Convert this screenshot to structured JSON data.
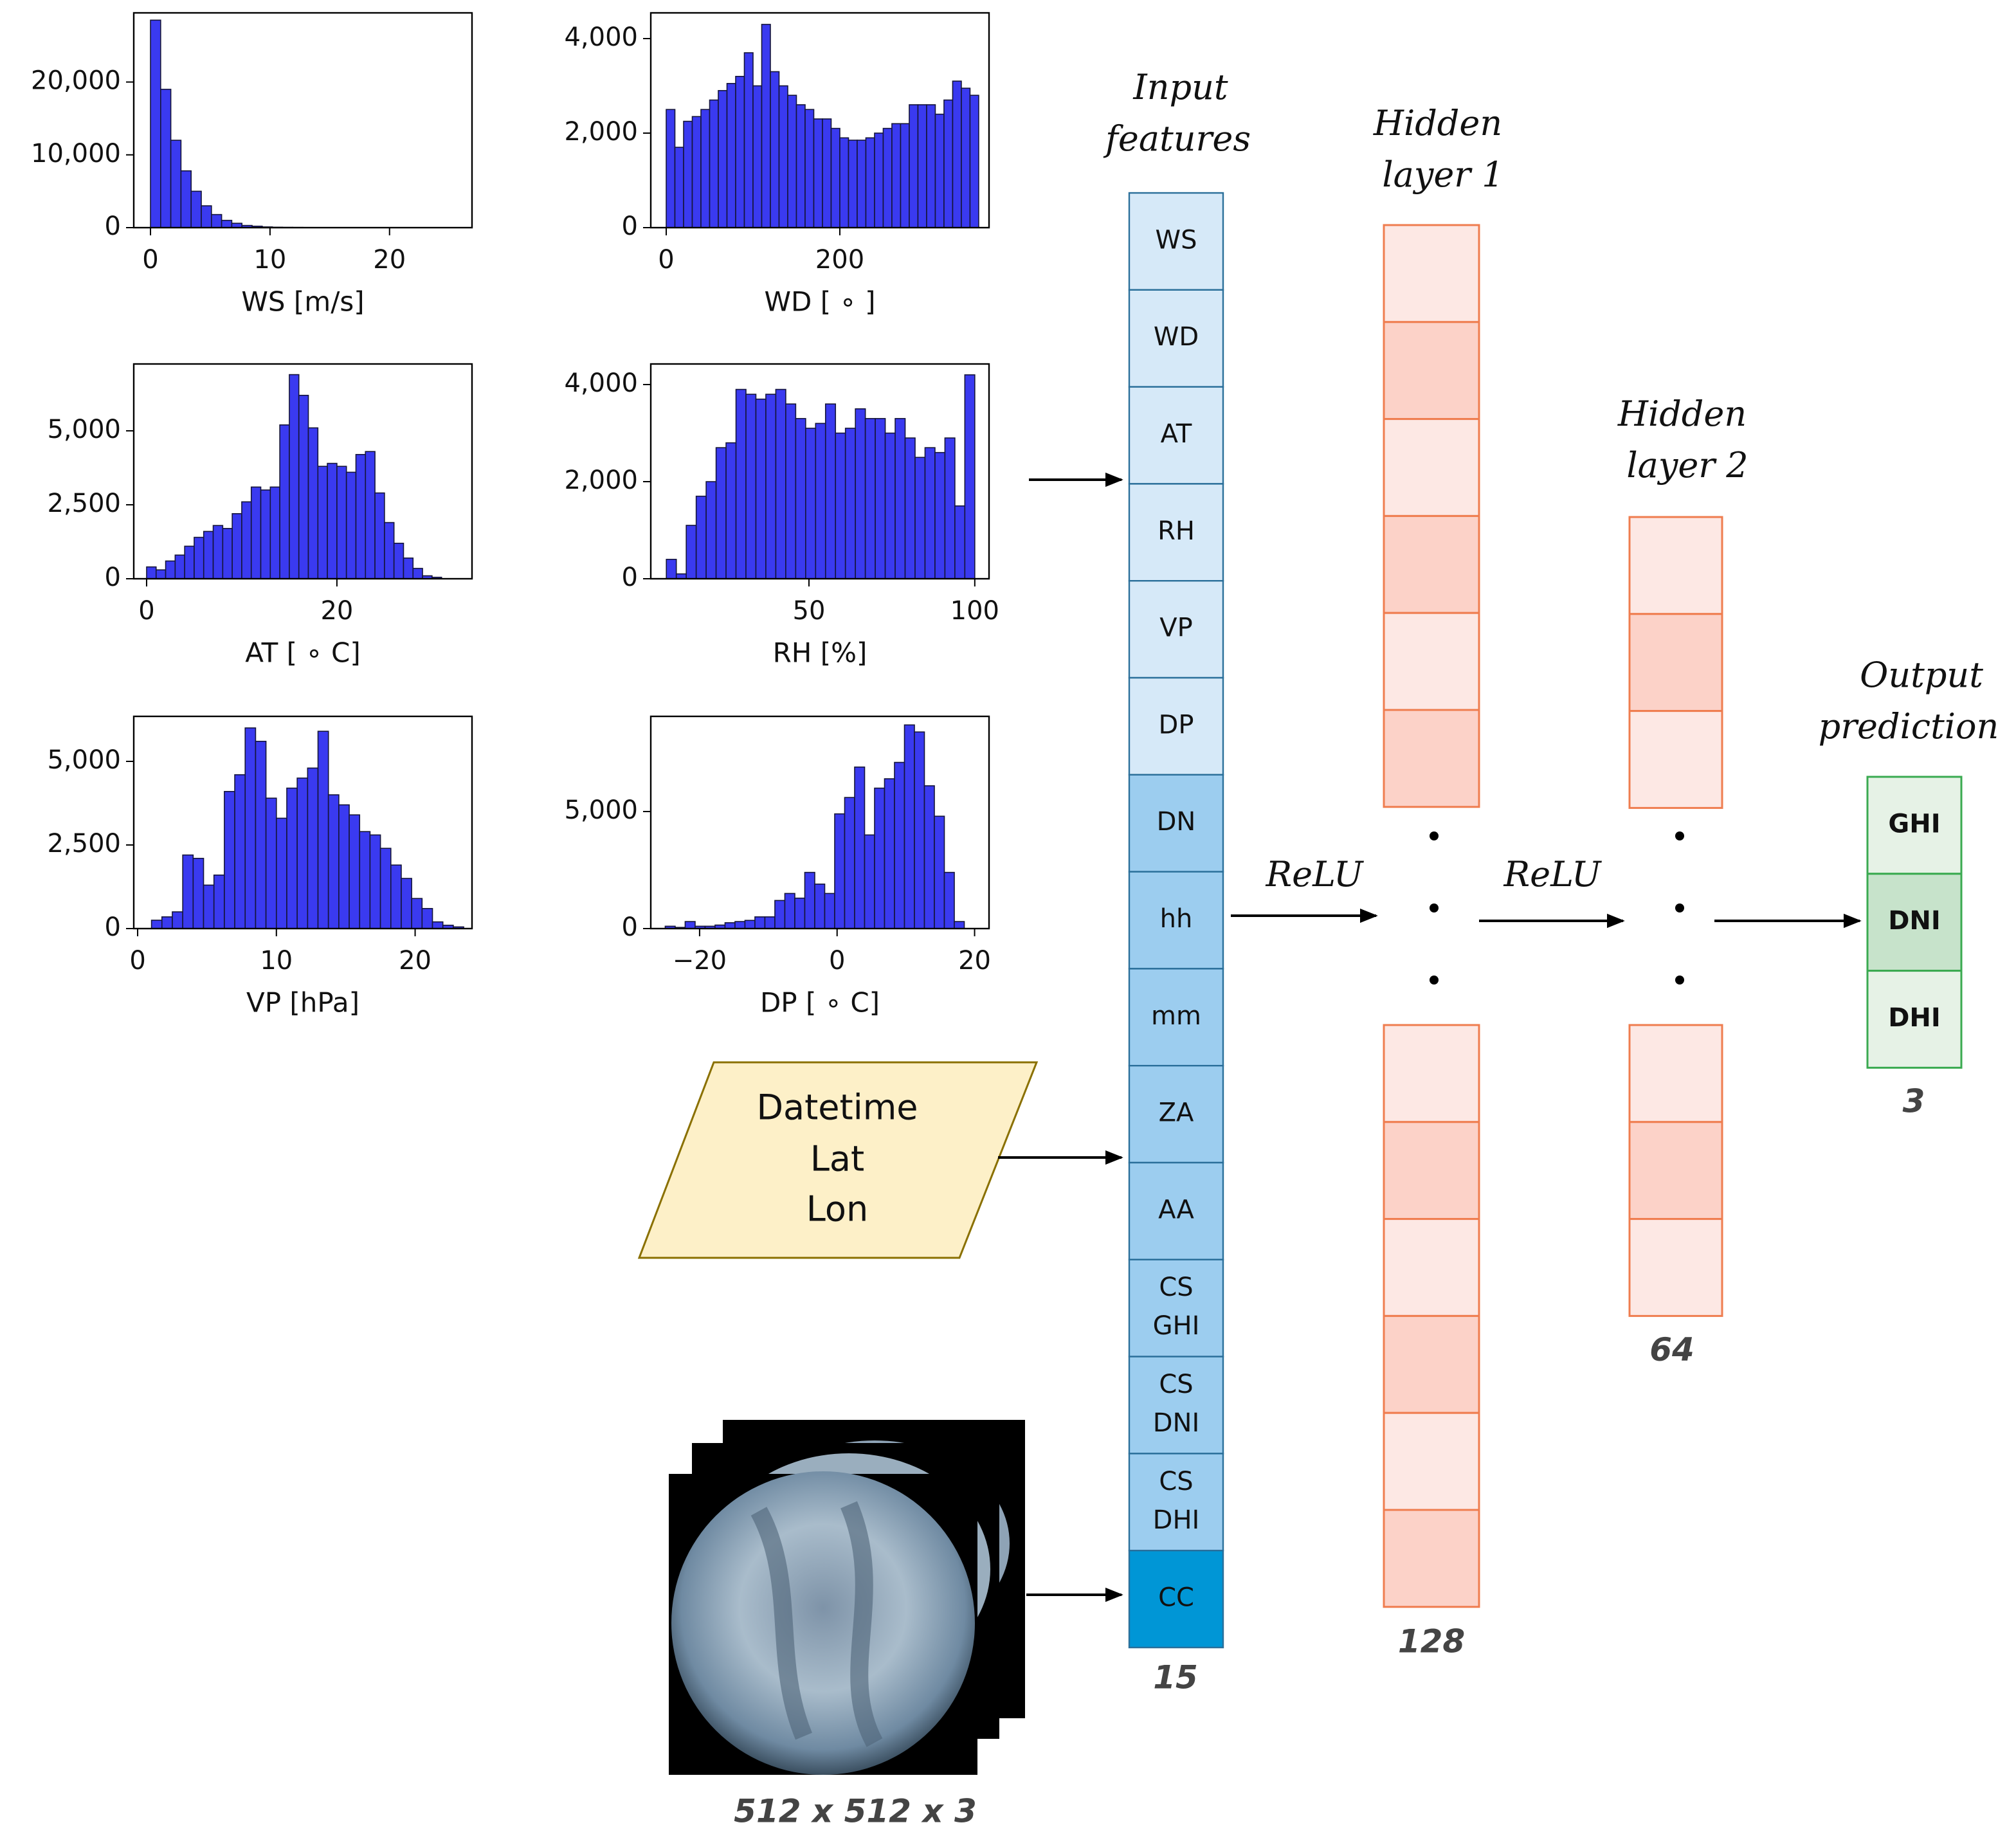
{
  "chart_data": [
    {
      "type": "histogram",
      "xlabel": "WS [m/s]",
      "color": "#3a3af0",
      "bins": [
        0,
        0.85,
        1.7,
        2.55,
        3.4,
        4.25,
        5.1,
        5.95,
        6.8,
        7.65,
        8.5,
        9.35,
        10.2,
        11.05,
        11.9,
        12.75,
        13.6,
        14.45,
        15.3,
        16.15,
        17,
        17.85,
        18.7,
        19.55,
        20.4,
        21.25,
        22.1,
        22.95,
        23.8,
        24.65,
        25.5
      ],
      "values": [
        28500,
        19000,
        12000,
        7800,
        5000,
        3000,
        1800,
        1000,
        600,
        300,
        200,
        100,
        60,
        40,
        30,
        20,
        15,
        10,
        10,
        5,
        5,
        5,
        5,
        3,
        3,
        2,
        2,
        1,
        1,
        1
      ],
      "xlim": [
        -1.4,
        26.9
      ],
      "ylim": [
        0,
        29500
      ],
      "xticks": [
        0,
        10,
        20
      ],
      "yticks": [
        0,
        {
          "value": 10000,
          "label": "10,000"
        },
        {
          "value": 20000,
          "label": "20,000"
        }
      ]
    },
    {
      "type": "histogram",
      "xlabel": "WD [ ∘ ]",
      "color": "#3a3af0",
      "bins": [
        0,
        10,
        20,
        30,
        40,
        50,
        60,
        70,
        80,
        90,
        100,
        110,
        120,
        130,
        140,
        150,
        160,
        170,
        180,
        190,
        200,
        210,
        220,
        230,
        240,
        250,
        260,
        270,
        280,
        290,
        300,
        310,
        320,
        330,
        340,
        350,
        360
      ],
      "values": [
        2500,
        1700,
        2250,
        2350,
        2500,
        2700,
        2900,
        3050,
        3200,
        3700,
        3000,
        4300,
        3300,
        3000,
        2800,
        2600,
        2500,
        2300,
        2300,
        2100,
        1900,
        1850,
        1850,
        1900,
        2000,
        2100,
        2200,
        2200,
        2600,
        2600,
        2600,
        2400,
        2700,
        3100,
        2950,
        2800
      ],
      "xlim": [
        -17.8,
        371.9
      ],
      "ylim": [
        0,
        4544
      ],
      "xticks": [
        0,
        200
      ],
      "yticks": [
        0,
        {
          "value": 2000,
          "label": "2,000"
        },
        {
          "value": 4000,
          "label": "4,000"
        }
      ]
    },
    {
      "type": "histogram",
      "xlabel": "AT [ ∘ C]",
      "color": "#3a3af0",
      "bins": [
        0,
        1,
        2,
        3,
        4,
        5,
        6,
        7,
        8,
        9,
        10,
        11,
        12,
        13,
        14,
        15,
        16,
        17,
        18,
        19,
        20,
        21,
        22,
        23,
        24,
        25,
        26,
        27,
        28,
        29,
        30,
        31
      ],
      "values": [
        400,
        300,
        600,
        800,
        1100,
        1400,
        1600,
        1800,
        1700,
        2200,
        2600,
        3100,
        3000,
        3100,
        5200,
        6900,
        6200,
        5100,
        3800,
        3900,
        3800,
        3600,
        4200,
        4300,
        2900,
        1900,
        1200,
        700,
        350,
        100,
        50
      ],
      "xlim": [
        -1.35,
        34.2
      ],
      "ylim": [
        0,
        7260
      ],
      "xticks": [
        0,
        20
      ],
      "yticks": [
        0,
        {
          "value": 2500,
          "label": "2,500"
        },
        {
          "value": 5000,
          "label": "5,000"
        }
      ]
    },
    {
      "type": "histogram",
      "xlabel": "RH [%]",
      "color": "#3a3af0",
      "bins": [
        7,
        10,
        13,
        16,
        19,
        22,
        25,
        28,
        31,
        34,
        37,
        40,
        43,
        46,
        49,
        52,
        55,
        58,
        61,
        64,
        67,
        70,
        73,
        76,
        79,
        82,
        85,
        88,
        91,
        94,
        97,
        100
      ],
      "values": [
        400,
        100,
        1100,
        1700,
        2000,
        2700,
        2800,
        3900,
        3800,
        3700,
        3800,
        3900,
        3600,
        3300,
        3100,
        3200,
        3600,
        3000,
        3100,
        3500,
        3300,
        3300,
        3000,
        3300,
        2900,
        2500,
        2700,
        2600,
        2900,
        1500,
        4200
      ],
      "xlim": [
        2.3,
        104.3
      ],
      "ylim": [
        0,
        4424
      ],
      "xticks": [
        50,
        100
      ],
      "yticks": [
        0,
        {
          "value": 2000,
          "label": "2,000"
        },
        {
          "value": 4000,
          "label": "4,000"
        }
      ]
    },
    {
      "type": "histogram",
      "xlabel": "VP [hPa]",
      "color": "#3a3af0",
      "bins": [
        1,
        1.75,
        2.5,
        3.25,
        4,
        4.75,
        5.5,
        6.25,
        7,
        7.75,
        8.5,
        9.25,
        10,
        10.75,
        11.5,
        12.25,
        13,
        13.75,
        14.5,
        15.25,
        16,
        16.75,
        17.5,
        18.25,
        19,
        19.75,
        20.5,
        21.25,
        22,
        22.75,
        23.5
      ],
      "values": [
        250,
        350,
        500,
        2200,
        2100,
        1300,
        1600,
        4100,
        4600,
        6000,
        5600,
        3900,
        3300,
        4200,
        4500,
        4800,
        5900,
        4000,
        3700,
        3400,
        2900,
        2800,
        2400,
        1900,
        1500,
        900,
        600,
        200,
        100,
        50
      ],
      "xlim": [
        -0.28,
        24.1
      ],
      "ylim": [
        0,
        6346
      ],
      "xticks": [
        0,
        10,
        20
      ],
      "yticks": [
        0,
        {
          "value": 2500,
          "label": "2,500"
        },
        {
          "value": 5000,
          "label": "5,000"
        }
      ]
    },
    {
      "type": "histogram",
      "xlabel": "DP [ ∘ C]",
      "color": "#3a3af0",
      "bins": [
        -25,
        -23.55,
        -22.1,
        -20.65,
        -19.2,
        -17.75,
        -16.3,
        -14.85,
        -13.4,
        -11.95,
        -10.5,
        -9.05,
        -7.6,
        -6.15,
        -4.7,
        -3.25,
        -1.8,
        -0.35,
        1.1,
        2.55,
        4,
        5.45,
        6.9,
        8.35,
        9.8,
        11.25,
        12.7,
        14.15,
        15.6,
        17.05,
        18.5
      ],
      "values": [
        100,
        50,
        300,
        100,
        100,
        150,
        250,
        300,
        350,
        500,
        500,
        1200,
        1500,
        1300,
        2400,
        1900,
        1500,
        4900,
        5600,
        6900,
        4000,
        6000,
        6400,
        7100,
        8700,
        8400,
        6100,
        4800,
        2400,
        300
      ],
      "xlim": [
        -27.1,
        22.1
      ],
      "ylim": [
        0,
        9066
      ],
      "xticks": [
        {
          "value": -20,
          "label": "−20"
        },
        0,
        20
      ],
      "yticks": [
        0,
        {
          "value": 5000,
          "label": "5,000"
        }
      ]
    }
  ],
  "input_layer": {
    "title": [
      "Input",
      "features"
    ],
    "features": [
      [
        "WS"
      ],
      [
        "WD"
      ],
      [
        "AT"
      ],
      [
        "RH"
      ],
      [
        "VP"
      ],
      [
        "DP"
      ],
      [
        "DN"
      ],
      [
        "hh"
      ],
      [
        "mm"
      ],
      [
        "ZA"
      ],
      [
        "AA"
      ],
      [
        "CS",
        "GHI"
      ],
      [
        "CS",
        "DNI"
      ],
      [
        "CS",
        "DHI"
      ],
      [
        "CC"
      ]
    ],
    "size": 15
  },
  "hidden_layer_1": {
    "title": [
      "Hidden",
      "layer 1"
    ],
    "size": 128
  },
  "hidden_layer_2": {
    "title": [
      "Hidden",
      "layer 2"
    ],
    "size": 64
  },
  "output": {
    "title": [
      "Output",
      "prediction"
    ],
    "outputs": [
      "GHI",
      "DNI",
      "DHI"
    ],
    "size": 3
  },
  "activations": [
    "ReLU",
    "ReLU"
  ],
  "metadata_input": [
    "Datetime",
    "Lat",
    "Lon"
  ],
  "image_input": {
    "size": "512 x 512 x 3"
  }
}
